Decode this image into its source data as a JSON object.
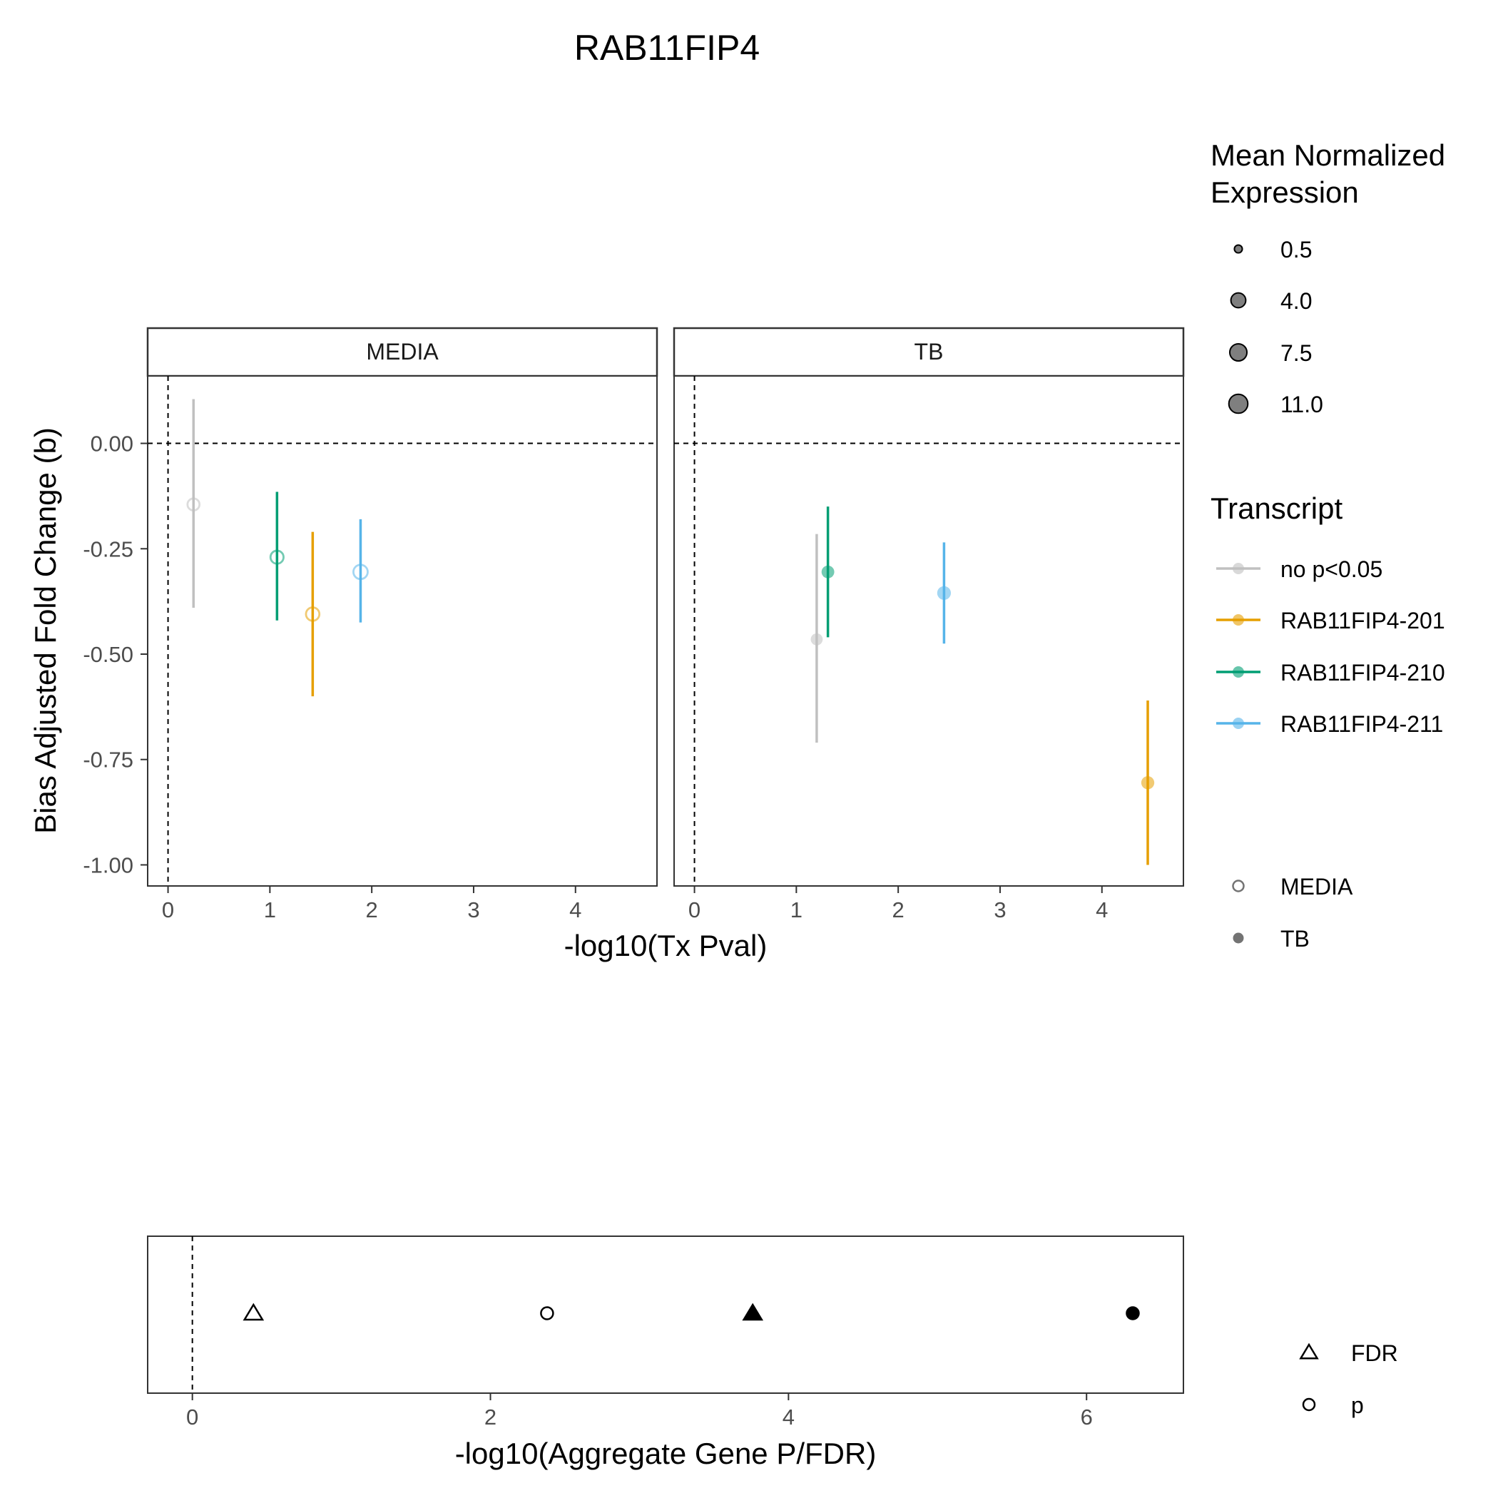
{
  "chart_data": [
    {
      "type": "scatter",
      "title": "RAB11FIP4",
      "xlabel": "-log10(Tx Pval)",
      "ylabel": "Bias Adjusted Fold Change (b)",
      "xlim": [
        -0.2,
        4.8
      ],
      "ylim": [
        -1.05,
        0.16
      ],
      "x_ticks": [
        0,
        1,
        2,
        3,
        4
      ],
      "y_ticks": [
        0.0,
        -0.25,
        -0.5,
        -0.75,
        -1.0
      ],
      "y_tick_labels": [
        "0.00",
        "-0.25",
        "-0.50",
        "-0.75",
        "-1.00"
      ],
      "reference_lines": {
        "x": 0,
        "y": 0
      },
      "grid": false,
      "facets": [
        {
          "label": "MEDIA",
          "points": [
            {
              "transcript": "no p<0.05",
              "x": 0.25,
              "y": -0.145,
              "ymin": -0.39,
              "ymax": 0.105,
              "size": 4.0
            },
            {
              "transcript": "RAB11FIP4-210",
              "x": 1.07,
              "y": -0.27,
              "ymin": -0.42,
              "ymax": -0.115,
              "size": 5.5
            },
            {
              "transcript": "RAB11FIP4-201",
              "x": 1.42,
              "y": -0.405,
              "ymin": -0.6,
              "ymax": -0.21,
              "size": 6.0
            },
            {
              "transcript": "RAB11FIP4-211",
              "x": 1.89,
              "y": -0.305,
              "ymin": -0.425,
              "ymax": -0.18,
              "size": 7.5
            }
          ]
        },
        {
          "label": "TB",
          "points": [
            {
              "transcript": "no p<0.05",
              "x": 1.2,
              "y": -0.465,
              "ymin": -0.71,
              "ymax": -0.215,
              "size": 4.0
            },
            {
              "transcript": "RAB11FIP4-210",
              "x": 1.31,
              "y": -0.305,
              "ymin": -0.46,
              "ymax": -0.15,
              "size": 5.0
            },
            {
              "transcript": "RAB11FIP4-211",
              "x": 2.45,
              "y": -0.355,
              "ymin": -0.475,
              "ymax": -0.235,
              "size": 6.5
            },
            {
              "transcript": "RAB11FIP4-201",
              "x": 4.45,
              "y": -0.805,
              "ymin": -1.0,
              "ymax": -0.61,
              "size": 5.5
            }
          ]
        }
      ],
      "size_legend": {
        "title_lines": [
          "Mean Normalized",
          "Expression"
        ],
        "values": [
          0.5,
          4.0,
          7.5,
          11.0
        ],
        "labels": [
          "0.5",
          "4.0",
          "7.5",
          "11.0"
        ]
      },
      "color_legend": {
        "title": "Transcript",
        "entries": [
          {
            "name": "no p<0.05",
            "color": "#C0C0C0"
          },
          {
            "name": "RAB11FIP4-201",
            "color": "#E69F00"
          },
          {
            "name": "RAB11FIP4-210",
            "color": "#009E73"
          },
          {
            "name": "RAB11FIP4-211",
            "color": "#56B4E9"
          }
        ]
      },
      "shape_legend": {
        "entries": [
          {
            "name": "MEDIA",
            "fill": "open"
          },
          {
            "name": "TB",
            "fill": "filled"
          }
        ]
      }
    },
    {
      "type": "scatter",
      "xlabel": "-log10(Aggregate Gene P/FDR)",
      "xlim": [
        -0.3,
        6.65
      ],
      "x_ticks": [
        0,
        2,
        4,
        6
      ],
      "reference_lines": {
        "x": 0
      },
      "points": [
        {
          "x": 0.41,
          "metric": "FDR",
          "condition": "MEDIA"
        },
        {
          "x": 2.38,
          "metric": "p",
          "condition": "MEDIA"
        },
        {
          "x": 3.76,
          "metric": "FDR",
          "condition": "TB"
        },
        {
          "x": 6.31,
          "metric": "p",
          "condition": "TB"
        }
      ],
      "shape_legend": {
        "entries": [
          {
            "name": "FDR",
            "shape": "triangle"
          },
          {
            "name": "p",
            "shape": "circle"
          }
        ]
      }
    }
  ]
}
